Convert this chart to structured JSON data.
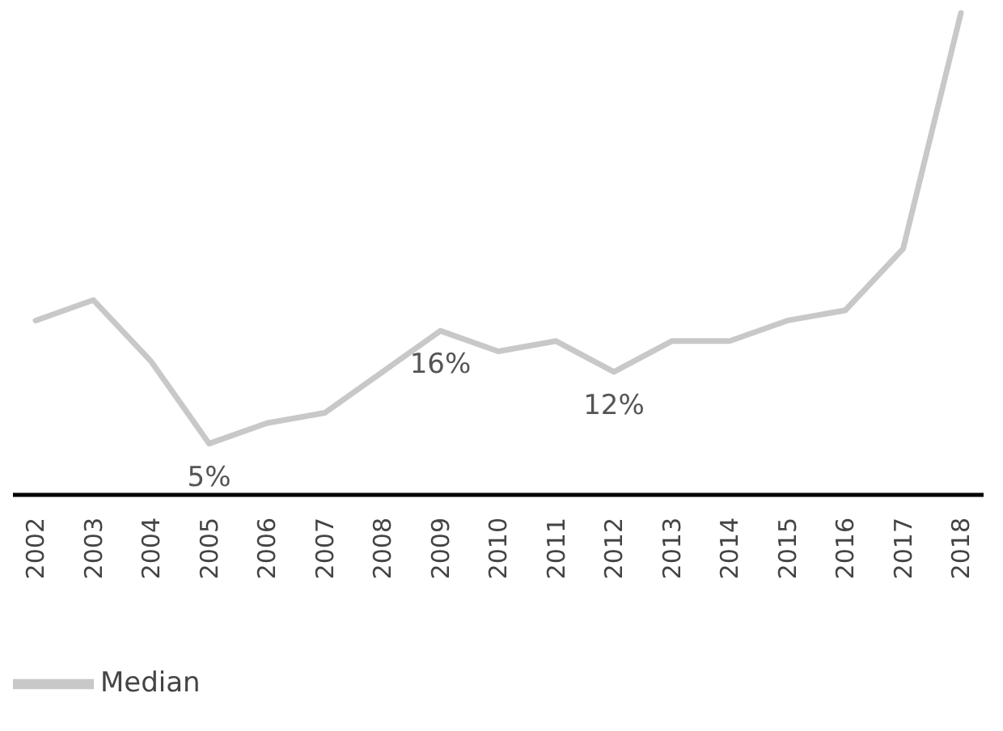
{
  "chart_data": {
    "type": "line",
    "categories": [
      "2002",
      "2003",
      "2004",
      "2005",
      "2006",
      "2007",
      "2008",
      "2009",
      "2010",
      "2011",
      "2012",
      "2013",
      "2014",
      "2015",
      "2016",
      "2017",
      "2018"
    ],
    "series": [
      {
        "name": "Median",
        "color": "#c8c8c8",
        "values": [
          17,
          19,
          13,
          5,
          7,
          8,
          12,
          16,
          14,
          15,
          12,
          15,
          15,
          17,
          18,
          24,
          47
        ],
        "value_labels": [
          null,
          null,
          null,
          "5%",
          null,
          null,
          null,
          "16%",
          null,
          null,
          "12%",
          null,
          null,
          null,
          null,
          null,
          null
        ]
      }
    ],
    "legend": "bottom left",
    "grid": false,
    "marker": "none",
    "line_style": "solid"
  }
}
